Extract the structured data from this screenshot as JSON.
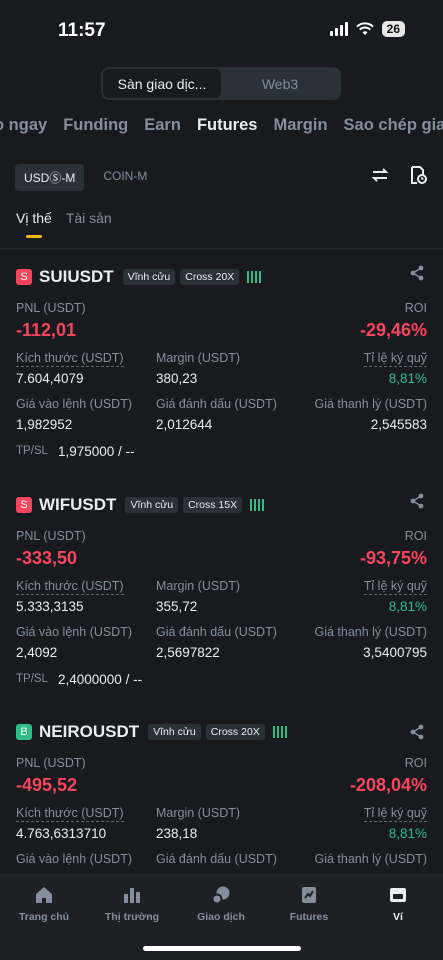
{
  "status": {
    "time": "11:57",
    "battery": "26"
  },
  "switcher": {
    "exchange": "Sàn giao dịc...",
    "web3": "Web3"
  },
  "main_tabs": [
    "o ngay",
    "Funding",
    "Earn",
    "Futures",
    "Margin",
    "Sao chép giao"
  ],
  "sub_tabs": {
    "usdm": "USDⓈ-M",
    "coinm": "COIN-M"
  },
  "position_tabs": {
    "positions": "Vị thế",
    "assets": "Tài sản"
  },
  "labels": {
    "pnl": "PNL (USDT)",
    "roi": "ROI",
    "size": "Kích thước (USDT)",
    "margin": "Margin (USDT)",
    "margin_ratio": "Tỉ lệ ký quỹ",
    "entry": "Giá vào lệnh (USDT)",
    "mark": "Giá đánh dấu (USDT)",
    "liq": "Giá thanh lý (USDT)",
    "tpsl": "TP/SL"
  },
  "positions": [
    {
      "side": "S",
      "symbol": "SUIUSDT",
      "type": "Vĩnh cửu",
      "leverage": "Cross 20X",
      "pnl": "-112,01",
      "roi": "-29,46%",
      "size": "7.604,4079",
      "margin": "380,23",
      "margin_ratio": "8,81%",
      "entry": "1,982952",
      "mark": "2,012644",
      "liq": "2,545583",
      "tpsl": "1,975000 / --"
    },
    {
      "side": "S",
      "symbol": "WIFUSDT",
      "type": "Vĩnh cửu",
      "leverage": "Cross 15X",
      "pnl": "-333,50",
      "roi": "-93,75%",
      "size": "5.333,3135",
      "margin": "355,72",
      "margin_ratio": "8,81%",
      "entry": "2,4092",
      "mark": "2,5697822",
      "liq": "3,5400795",
      "tpsl": "2,4000000 / --"
    },
    {
      "side": "B",
      "symbol": "NEIROUSDT",
      "type": "Vĩnh cửu",
      "leverage": "Cross 20X",
      "pnl": "-495,52",
      "roi": "-208,04%",
      "size": "4.763,6313710",
      "margin": "238,18",
      "margin_ratio": "8,81%"
    }
  ],
  "nav": [
    "Trang chủ",
    "Thị trường",
    "Giao dịch",
    "Futures",
    "Ví"
  ],
  "colors": {
    "bg": "#181a20",
    "red": "#f6465d",
    "green": "#2ebd85",
    "accent": "#f0b90b"
  }
}
